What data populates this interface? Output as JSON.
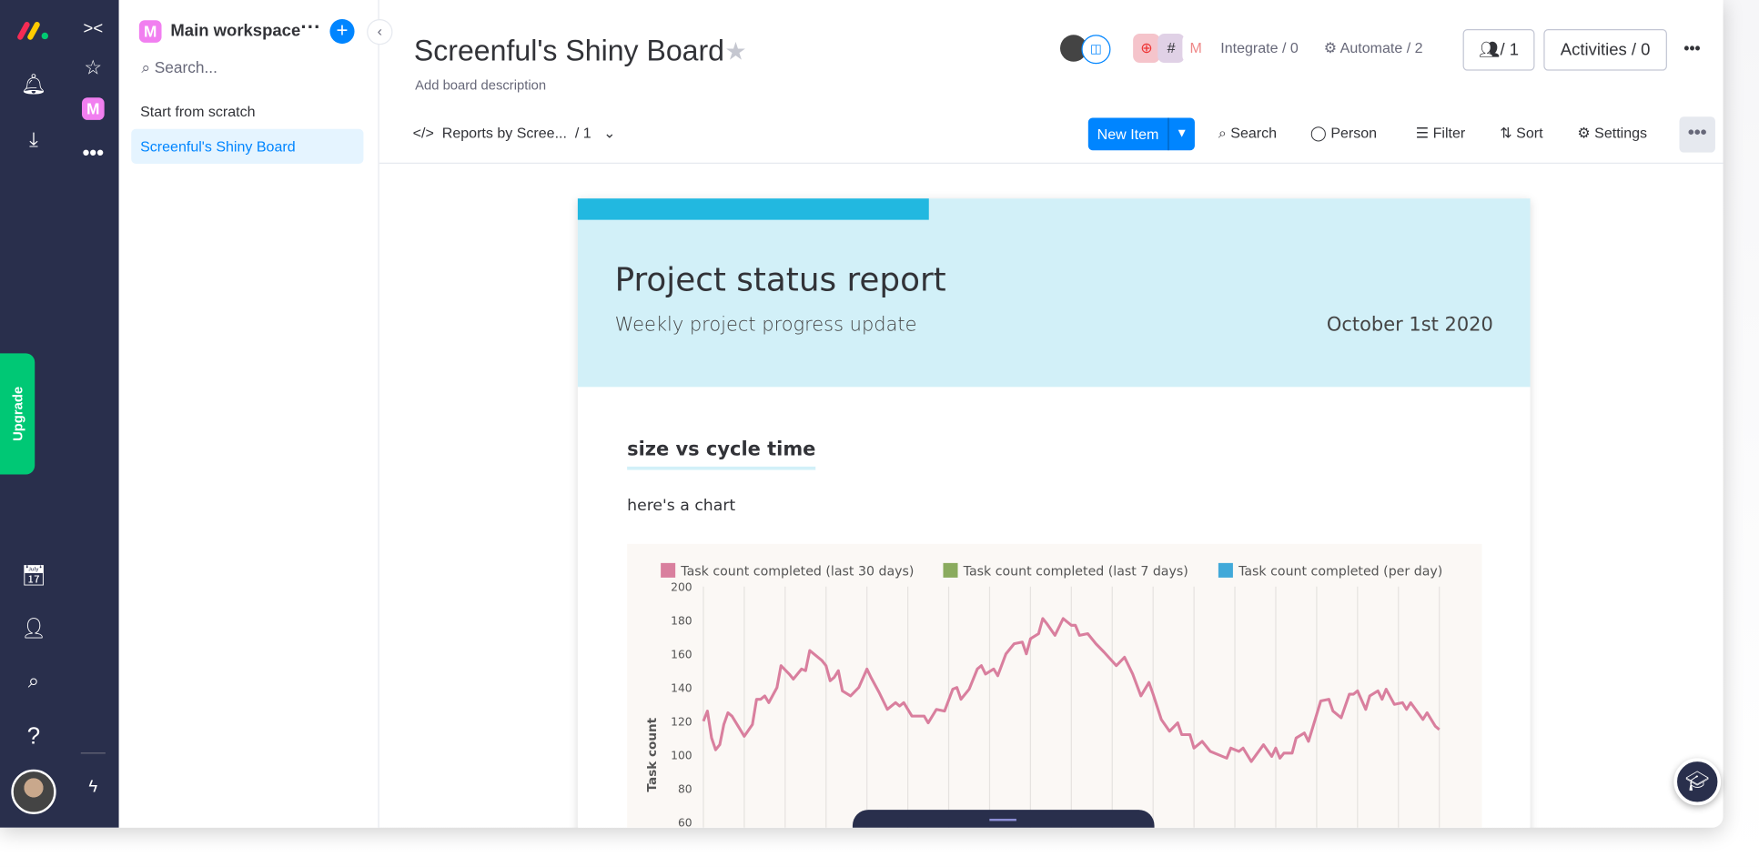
{
  "rail": {
    "upgrade": "Upgrade"
  },
  "workspace": {
    "badge": "M",
    "title": "Main workspace",
    "search_placeholder": "Search...",
    "items": [
      {
        "label": "Start from scratch"
      },
      {
        "label": "Screenful's Shiny Board"
      }
    ]
  },
  "board": {
    "title": "Screenful's Shiny Board",
    "description": "Add board description",
    "integrate": "Integrate / 0",
    "automate": "Automate / 2",
    "members": "/ 1",
    "activities": "Activities / 0",
    "view_tab": "Reports by Scree...",
    "view_count": "/ 1",
    "new_item": "New Item",
    "toolbar": {
      "search": "Search",
      "person": "Person",
      "filter": "Filter",
      "sort": "Sort",
      "settings": "Settings"
    }
  },
  "report": {
    "title": "Project status report",
    "subtitle": "Weekly project progress update",
    "date": "October 1st 2020",
    "section_title": "size vs cycle time",
    "section_text": "here's a chart"
  },
  "colors": {
    "rail": "#292f4c",
    "accent": "#0085ff",
    "upgrade": "#00c875",
    "report_header": "#d2f0f8"
  },
  "chart_data": {
    "type": "line",
    "title": "",
    "xlabel": "",
    "ylabel": "Task count",
    "ylim": [
      60,
      200
    ],
    "xlim": [
      0,
      180
    ],
    "yticks": [
      60,
      80,
      100,
      120,
      140,
      160,
      180,
      200
    ],
    "grid": "vertical",
    "legend": "top",
    "series": [
      {
        "name": "Task count completed (last 30 days)",
        "color": "#d97f9e",
        "x": [
          0,
          1,
          2,
          3,
          4,
          5,
          6,
          7,
          9,
          10,
          12,
          13,
          14,
          15,
          16,
          18,
          19,
          21,
          22,
          24,
          25,
          26,
          27,
          29,
          30,
          31,
          32,
          33,
          34,
          36,
          38,
          40,
          41,
          43,
          45,
          47,
          48,
          49,
          51,
          54,
          55,
          57,
          59,
          61,
          62,
          63,
          65,
          67,
          68,
          69,
          71,
          72,
          74,
          76,
          78,
          79,
          80,
          82,
          83,
          84,
          86,
          88,
          90,
          91,
          92,
          94,
          96,
          98,
          101,
          103,
          105,
          107,
          109,
          110,
          112,
          114,
          116,
          117,
          119,
          120,
          122,
          124,
          128,
          129,
          131,
          132,
          134,
          137,
          139,
          140,
          141,
          142,
          144,
          145,
          147,
          148,
          150,
          151,
          153,
          154,
          156,
          158,
          159,
          160,
          162,
          163,
          165,
          166,
          167,
          169,
          171,
          172,
          173,
          176,
          177,
          179,
          180
        ],
        "y": [
          120,
          126,
          110,
          103,
          106,
          118,
          125,
          123,
          115,
          111,
          118,
          133,
          133,
          135,
          131,
          140,
          153,
          148,
          145,
          151,
          150,
          162,
          160,
          156,
          153,
          144,
          146,
          150,
          138,
          135,
          140,
          151,
          146,
          137,
          127,
          131,
          129,
          131,
          123,
          123,
          119,
          127,
          126,
          139,
          140,
          133,
          139,
          151,
          153,
          148,
          151,
          147,
          160,
          166,
          167,
          160,
          169,
          172,
          181,
          178,
          171,
          181,
          177,
          177,
          171,
          172,
          166,
          161,
          153,
          158,
          148,
          135,
          143,
          136,
          121,
          114,
          119,
          112,
          112,
          104,
          108,
          102,
          98,
          104,
          102,
          104,
          96,
          106,
          99,
          104,
          98,
          101,
          101,
          110,
          113,
          108,
          124,
          132,
          133,
          126,
          122,
          136,
          136,
          138,
          127,
          135,
          138,
          133,
          139,
          130,
          131,
          127,
          131,
          121,
          125,
          117,
          115
        ]
      },
      {
        "name": "Task count completed (last 7 days)",
        "color": "#8aab5e",
        "x": [],
        "y": []
      },
      {
        "name": "Task count completed (per day)",
        "color": "#41a9d9",
        "x": [],
        "y": []
      }
    ]
  }
}
